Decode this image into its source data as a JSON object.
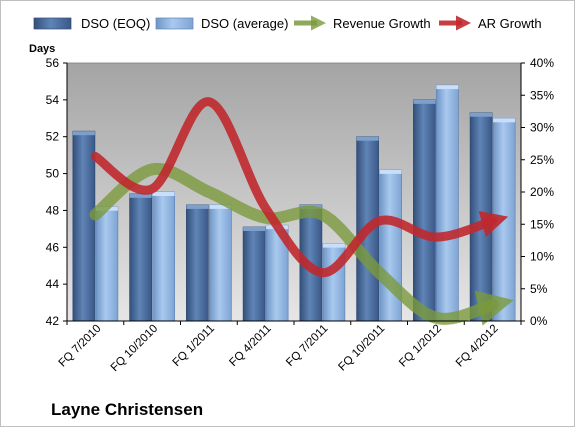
{
  "chart_data": {
    "type": "bar",
    "title": "Layne Christensen",
    "ylabel": "Days",
    "y2label": "",
    "categories": [
      "FQ 7/2010",
      "FQ 10/2010",
      "FQ 1/2011",
      "FQ 4/2011",
      "FQ 7/2011",
      "FQ 10/2011",
      "FQ 1/2012",
      "FQ 4/2012"
    ],
    "ylim": [
      42,
      56
    ],
    "yticks": [
      "42",
      "44",
      "46",
      "48",
      "50",
      "52",
      "54",
      "56"
    ],
    "y2lim": [
      0,
      40
    ],
    "y2ticks": [
      "0%",
      "5%",
      "10%",
      "15%",
      "20%",
      "25%",
      "30%",
      "35%",
      "40%"
    ],
    "grid": false,
    "legend_position": "top",
    "series": [
      {
        "name": "DSO (EOQ)",
        "kind": "bar",
        "axis": "left",
        "color": "#4a6ea0",
        "values": [
          52.3,
          48.9,
          48.3,
          47.1,
          48.3,
          52.0,
          54.0,
          53.3
        ]
      },
      {
        "name": "DSO (average)",
        "kind": "bar",
        "axis": "left",
        "color": "#8fb4e0",
        "values": [
          48.2,
          49.0,
          48.3,
          47.2,
          46.2,
          50.2,
          54.8,
          53.0
        ]
      },
      {
        "name": "Revenue Growth",
        "kind": "line",
        "axis": "right",
        "color": "#7a9a3c",
        "values": [
          16.5,
          23.5,
          20.0,
          16.0,
          16.5,
          7.5,
          0.5,
          2.5
        ]
      },
      {
        "name": "AR Growth",
        "kind": "line",
        "axis": "right",
        "color": "#c0282e",
        "values": [
          25.5,
          20.5,
          34.0,
          17.5,
          7.5,
          15.5,
          13.0,
          15.5
        ]
      }
    ]
  }
}
